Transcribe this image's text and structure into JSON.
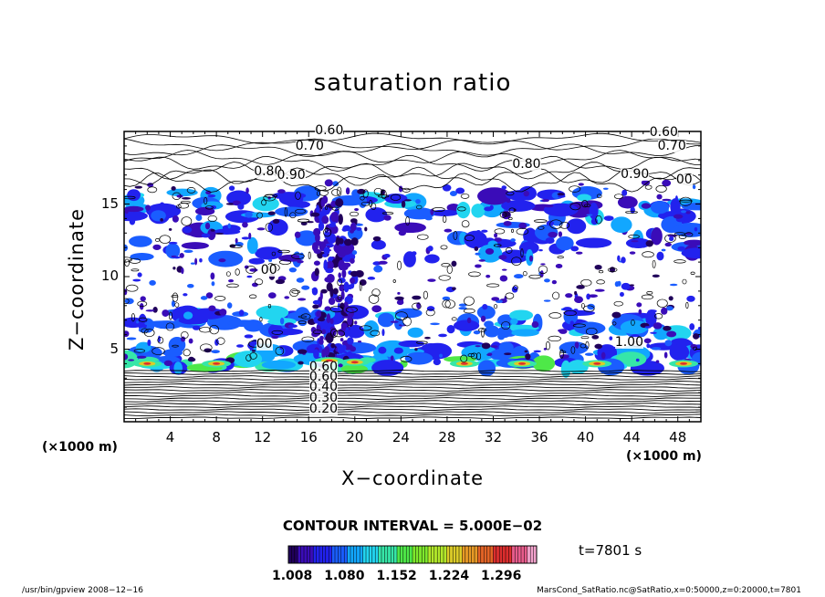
{
  "chart_data": {
    "type": "heatmap",
    "title": "saturation ratio",
    "xlabel": "X−coordinate",
    "ylabel": "Z−coordinate",
    "x_unit": "(×1000 m)",
    "y_unit": "(×1000 m)",
    "xlim": [
      0,
      50
    ],
    "ylim": [
      0,
      20
    ],
    "x_ticks": [
      "4",
      "8",
      "12",
      "16",
      "20",
      "24",
      "28",
      "32",
      "36",
      "40",
      "44",
      "48"
    ],
    "y_ticks": [
      "5",
      "10",
      "15"
    ],
    "x_tick_values": [
      4,
      8,
      12,
      16,
      20,
      24,
      28,
      32,
      36,
      40,
      44,
      48
    ],
    "y_tick_values": [
      5,
      10,
      15
    ],
    "contour_interval_text": "CONTOUR INTERVAL = 5.000E−02",
    "contour_labels": [
      {
        "text": "0.60",
        "x": 17.5,
        "z": 20.0
      },
      {
        "text": "0.70",
        "x": 15.8,
        "z": 18.9
      },
      {
        "text": "0.60",
        "x": 46.5,
        "z": 19.9
      },
      {
        "text": "0.70",
        "x": 47.2,
        "z": 18.9
      },
      {
        "text": "0.80",
        "x": 34.6,
        "z": 17.7
      },
      {
        "text": "0.80",
        "x": 12.2,
        "z": 17.2
      },
      {
        "text": "0.90",
        "x": 14.2,
        "z": 16.9
      },
      {
        "text": "0.90",
        "x": 44.0,
        "z": 17.0
      },
      {
        "text": "00",
        "x": 48.8,
        "z": 16.6
      },
      {
        "text": "00",
        "x": 12.8,
        "z": 10.4
      },
      {
        "text": "00",
        "x": 12.4,
        "z": 5.3
      },
      {
        "text": "1.00",
        "x": 43.5,
        "z": 5.4
      },
      {
        "text": "0.60",
        "x": 17.0,
        "z": 3.7
      },
      {
        "text": "0.60",
        "x": 17.0,
        "z": 3.0
      },
      {
        "text": "0.40",
        "x": 17.0,
        "z": 2.3
      },
      {
        "text": "0.30",
        "x": 17.0,
        "z": 1.6
      },
      {
        "text": "0.20",
        "x": 17.0,
        "z": 0.8
      }
    ],
    "colorbar": {
      "ticks": [
        "1.008",
        "1.080",
        "1.152",
        "1.224",
        "1.296"
      ],
      "tick_values": [
        1.008,
        1.08,
        1.152,
        1.224,
        1.296
      ],
      "min": 1.008,
      "max": 1.35,
      "colors": [
        "#20005a",
        "#3a0cb8",
        "#2222ee",
        "#1a5dff",
        "#12a7ff",
        "#22d5f0",
        "#36e6a8",
        "#4ee848",
        "#7ee82c",
        "#b2e82a",
        "#dccc28",
        "#e89a26",
        "#e46426",
        "#dc2e2e",
        "#e85c8c",
        "#f2a3cc"
      ]
    },
    "time_label": "t=7801 s",
    "footer_left": "/usr/bin/gpview   2008−12−16",
    "footer_right": "MarsCond_SatRatio.nc@SatRatio,x=0:50000,z=0:20000,t=7801",
    "grid": false,
    "legend": "none"
  }
}
